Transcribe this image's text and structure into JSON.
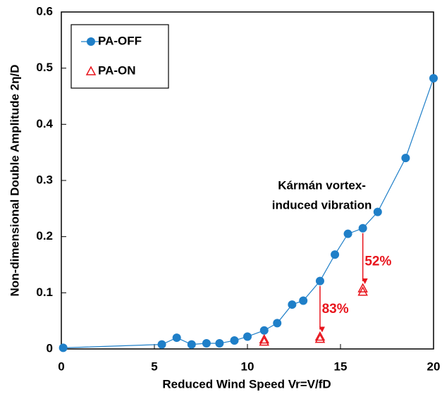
{
  "chart_data": {
    "type": "line",
    "xlabel": "Reduced Wind Speed Vr=V/fD",
    "ylabel": "Non-dimensional Double Amplitude 2η/D",
    "xlim": [
      0,
      20
    ],
    "xticks": [
      0,
      5,
      10,
      15,
      20
    ],
    "ylim": [
      0,
      0.6
    ],
    "yticks": [
      0,
      0.1,
      0.2,
      0.3,
      0.4,
      0.5,
      0.6
    ],
    "legend": "upper left",
    "series": [
      {
        "name": "PA-OFF",
        "color": "#1f7fc8",
        "marker": "circle",
        "line": true,
        "x": [
          0.1,
          5.4,
          6.2,
          7.0,
          7.8,
          8.5,
          9.3,
          10.0,
          10.9,
          11.6,
          12.4,
          13.0,
          13.9,
          14.7,
          15.4,
          16.2,
          17.0,
          18.5,
          20.0
        ],
        "values": [
          0.002,
          0.008,
          0.02,
          0.008,
          0.01,
          0.01,
          0.015,
          0.022,
          0.033,
          0.046,
          0.079,
          0.086,
          0.121,
          0.168,
          0.205,
          0.215,
          0.244,
          0.34,
          0.482
        ]
      },
      {
        "name": "PA-ON",
        "color": "#e8141c",
        "marker": "triangle",
        "line": false,
        "x": [
          10.9,
          10.9,
          13.9,
          13.9,
          16.2,
          16.2
        ],
        "values": [
          0.013,
          0.017,
          0.018,
          0.022,
          0.102,
          0.108
        ]
      }
    ],
    "annotations": [
      {
        "text": "Kármán vortex-",
        "x": 14.0,
        "y": 0.29
      },
      {
        "text": "induced vibration",
        "x": 14.0,
        "y": 0.255
      },
      {
        "text": "83%",
        "x": 14.0,
        "y": 0.07,
        "color": "#e8141c"
      },
      {
        "text": "52%",
        "x": 16.3,
        "y": 0.155,
        "color": "#e8141c"
      }
    ]
  }
}
